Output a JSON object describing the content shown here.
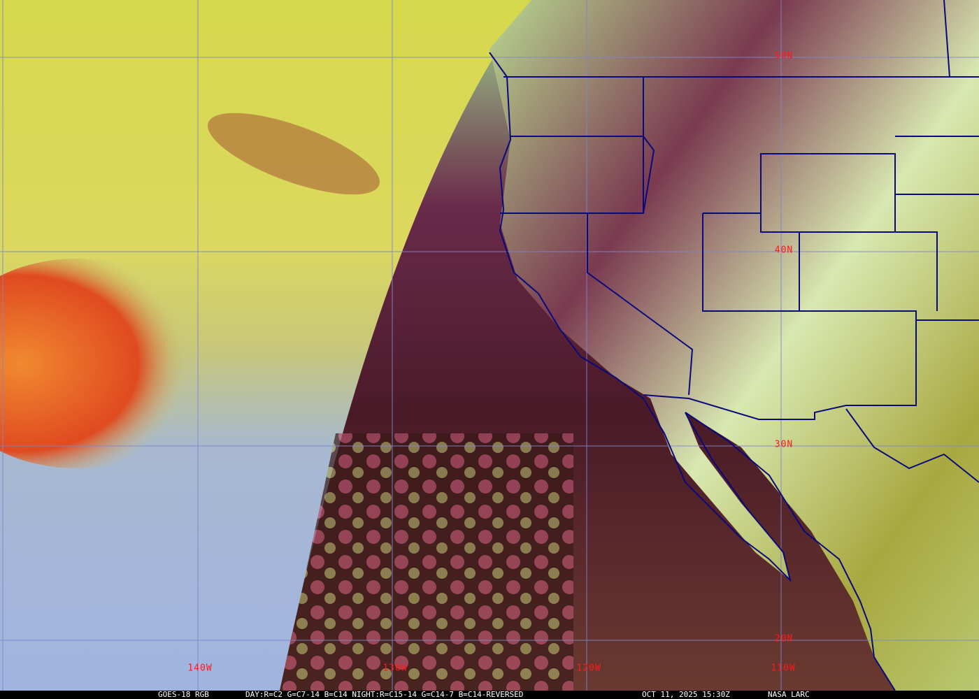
{
  "satellite_image": {
    "product": "GOES-18 RGB",
    "composite": "DAY:R=C2 G=C7-14 B=C14 NIGHT:R=C15-14 G=C14-7 B=C14-REVERSED",
    "timestamp": "OCT 11, 2025 15:30Z",
    "credit": "NASA LARC"
  },
  "grid": {
    "latitude_labels": [
      "50N",
      "40N",
      "30N",
      "20N"
    ],
    "longitude_labels": [
      "140W",
      "130W",
      "120W",
      "110W"
    ],
    "line_color": "#7f86c9",
    "label_color": "#ff1a1a",
    "boundary_color": "#0a0a7a"
  },
  "colors": {
    "day_ocean": "#9fb0d8",
    "day_cloud": "#d8d84a",
    "storm": "#f07020",
    "night_ocean": "#5a1a2e",
    "land_green": "#9aa040",
    "land_cloud": "#c8f0a0"
  }
}
